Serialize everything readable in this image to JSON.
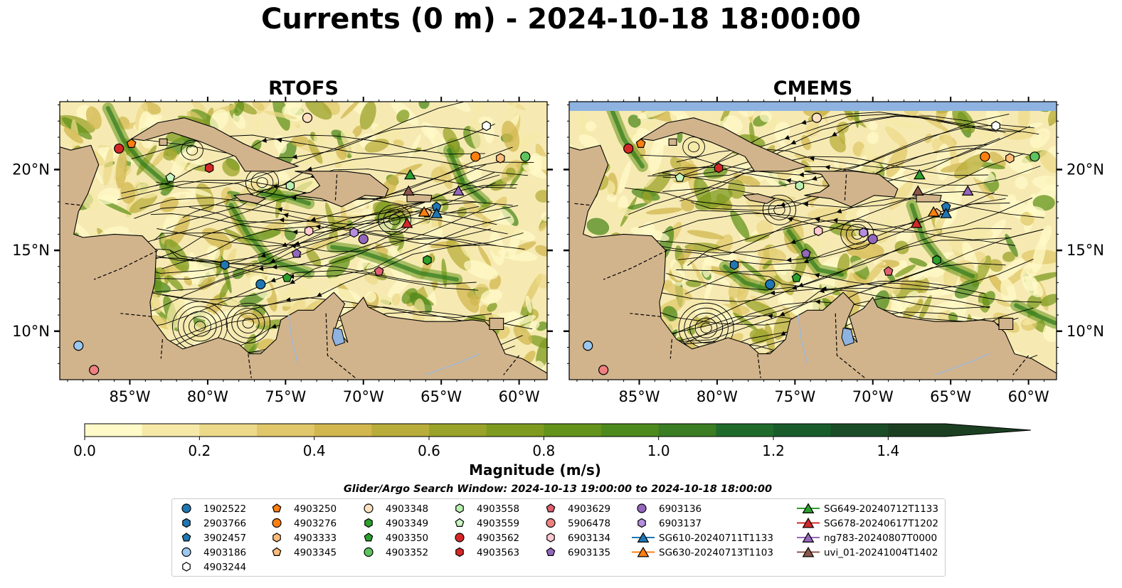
{
  "title": "Currents (0 m) - 2024-10-18 18:00:00",
  "panels": [
    {
      "name": "RTOFS"
    },
    {
      "name": "CMEMS"
    }
  ],
  "map": {
    "lon_range": [
      -89.5,
      -58.2
    ],
    "lat_range": [
      7.0,
      24.2
    ],
    "lon_ticks": [
      {
        "value": -85,
        "label": "85°W"
      },
      {
        "value": -80,
        "label": "80°W"
      },
      {
        "value": -75,
        "label": "75°W"
      },
      {
        "value": -70,
        "label": "70°W"
      },
      {
        "value": -65,
        "label": "65°W"
      },
      {
        "value": -60,
        "label": "60°W"
      }
    ],
    "lat_ticks": [
      {
        "value": 20,
        "label": "20°N"
      },
      {
        "value": 15,
        "label": "15°N"
      },
      {
        "value": 10,
        "label": "10°N"
      }
    ],
    "colors": {
      "land": "#d2b48c",
      "lake": "#8fb3e0",
      "river": "#9fb8d8",
      "ocean_low": "#f6eab2",
      "ocean_high": "#2f7a1d"
    }
  },
  "chart_data": {
    "type": "map",
    "colorbar": {
      "label": "Magnitude (m/s)",
      "min": 0.0,
      "max": 1.5,
      "extend": "max",
      "ticks": [
        "0.0",
        "0.2",
        "0.4",
        "0.6",
        "0.8",
        "1.0",
        "1.2",
        "1.4"
      ],
      "tick_values": [
        0.0,
        0.2,
        0.4,
        0.6,
        0.8,
        1.0,
        1.2,
        1.4
      ],
      "levels": [
        "#fffac8",
        "#f6e9a8",
        "#ecd98a",
        "#e0c86a",
        "#d2b74f",
        "#b8ad3b",
        "#9aa329",
        "#7e9b20",
        "#63931b",
        "#4d8a1e",
        "#3a7d22",
        "#1f6b2b",
        "#185c2c",
        "#1a4d27",
        "#1c3f22"
      ]
    },
    "search_window": "Glider/Argo Search Window: 2024-10-13 19:00:00 to 2024-10-18 18:00:00",
    "floats": [
      {
        "id": "1902522",
        "marker": "circle",
        "color": "#1f77b4",
        "lon": -76.6,
        "lat": 12.9
      },
      {
        "id": "2903766",
        "marker": "hexagon",
        "color": "#1f77b4",
        "lon": -78.9,
        "lat": 14.1
      },
      {
        "id": "3902457",
        "marker": "pentagon",
        "color": "#1f77b4",
        "lon": -65.3,
        "lat": 17.7
      },
      {
        "id": "4903186",
        "marker": "circle",
        "color": "#9cc8ef",
        "lon": -88.3,
        "lat": 9.1
      },
      {
        "id": "4903244",
        "marker": "hexagon",
        "color": "#ffffff",
        "lon": -62.1,
        "lat": 22.7
      },
      {
        "id": "4903250",
        "marker": "pentagon",
        "color": "#ff7f0e",
        "lon": -84.9,
        "lat": 21.6
      },
      {
        "id": "4903276",
        "marker": "circle",
        "color": "#ff7f0e",
        "lon": -62.8,
        "lat": 20.8
      },
      {
        "id": "4903333",
        "marker": "hexagon",
        "color": "#ffbb78",
        "lon": -61.2,
        "lat": 20.7
      },
      {
        "id": "4903345",
        "marker": "pentagon",
        "color": "#ffbb78",
        "lon": -65.9,
        "lat": 17.3
      },
      {
        "id": "4903348",
        "marker": "circle",
        "color": "#fde0c0",
        "lon": -73.6,
        "lat": 23.2
      },
      {
        "id": "4903349",
        "marker": "hexagon",
        "color": "#2ca02c",
        "lon": -65.9,
        "lat": 14.4
      },
      {
        "id": "4903350",
        "marker": "pentagon",
        "color": "#2ca02c",
        "lon": -74.9,
        "lat": 13.3
      },
      {
        "id": "4903352",
        "marker": "circle",
        "color": "#5ec45e",
        "lon": -59.6,
        "lat": 20.8
      },
      {
        "id": "4903558",
        "marker": "hexagon",
        "color": "#b8f0b0",
        "lon": -74.7,
        "lat": 19.0
      },
      {
        "id": "4903559",
        "marker": "pentagon",
        "color": "#c8f5c0",
        "lon": -82.4,
        "lat": 19.5
      },
      {
        "id": "4903562",
        "marker": "circle",
        "color": "#d62728",
        "lon": -85.7,
        "lat": 21.3
      },
      {
        "id": "4903563",
        "marker": "hexagon",
        "color": "#d62728",
        "lon": -79.9,
        "lat": 20.1
      },
      {
        "id": "4903629",
        "marker": "pentagon",
        "color": "#e06070",
        "lon": -69.0,
        "lat": 13.7
      },
      {
        "id": "5906478",
        "marker": "circle",
        "color": "#f08080",
        "lon": -87.3,
        "lat": 7.6
      },
      {
        "id": "6903134",
        "marker": "hexagon",
        "color": "#ffc8d0",
        "lon": -73.5,
        "lat": 16.2
      },
      {
        "id": "6903135",
        "marker": "pentagon",
        "color": "#9467bd",
        "lon": -74.3,
        "lat": 14.8
      },
      {
        "id": "6903136",
        "marker": "circle",
        "color": "#9467bd",
        "lon": -70.0,
        "lat": 15.7
      },
      {
        "id": "6903137",
        "marker": "hexagon",
        "color": "#b58ee0",
        "lon": -70.6,
        "lat": 16.1
      }
    ],
    "gliders": [
      {
        "id": "SG610-20240711T1133",
        "color": "#1f77b4",
        "lon": -65.3,
        "lat": 17.3
      },
      {
        "id": "SG630-20240713T1103",
        "color": "#ff7f0e",
        "lon": -66.1,
        "lat": 17.4
      },
      {
        "id": "SG649-20240712T1133",
        "color": "#2ca02c",
        "lon": -67.0,
        "lat": 19.7
      },
      {
        "id": "SG678-20240617T1202",
        "color": "#d62728",
        "lon": -67.2,
        "lat": 16.7
      },
      {
        "id": "ng783-20240807T0000",
        "color": "#9467bd",
        "lon": -63.9,
        "lat": 18.7
      },
      {
        "id": "uvi_01-20241004T1402",
        "color": "#8c564b",
        "lon": -67.1,
        "lat": 18.7
      }
    ]
  }
}
